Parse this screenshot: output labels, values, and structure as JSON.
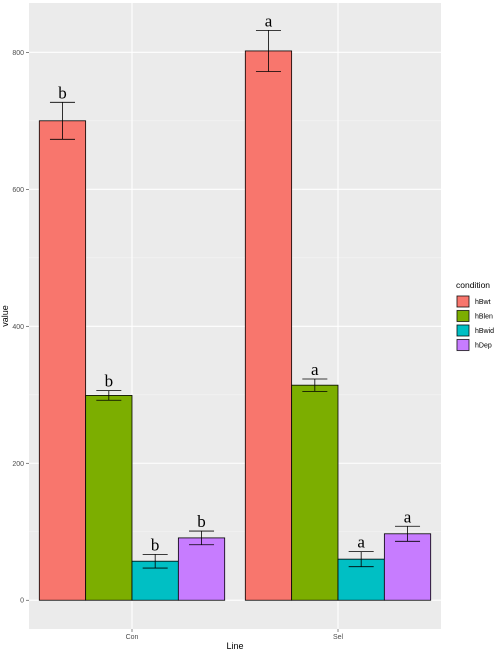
{
  "chart_data": {
    "type": "bar",
    "xlabel": "Line",
    "ylabel": "value",
    "ylim": [
      -42,
      872
    ],
    "yticks": [
      0,
      200,
      400,
      600,
      800
    ],
    "grid": true,
    "legend_title": "condition",
    "legend_position": "right",
    "categories": [
      "Con",
      "Sel"
    ],
    "series": [
      {
        "name": "hBwt",
        "color": "#F8766D",
        "values": [
          700,
          802
        ],
        "errors": [
          27,
          30
        ],
        "labels": [
          "b",
          "a"
        ]
      },
      {
        "name": "hBlen",
        "color": "#7CAE00",
        "values": [
          299,
          314
        ],
        "errors": [
          7,
          9
        ],
        "labels": [
          "b",
          "a"
        ]
      },
      {
        "name": "hBwid",
        "color": "#00BFC4",
        "values": [
          57,
          60
        ],
        "errors": [
          10,
          11
        ],
        "labels": [
          "b",
          "a"
        ]
      },
      {
        "name": "hDep",
        "color": "#C77CFF",
        "values": [
          91,
          97
        ],
        "errors": [
          10,
          11
        ],
        "labels": [
          "b",
          "a"
        ]
      }
    ]
  }
}
